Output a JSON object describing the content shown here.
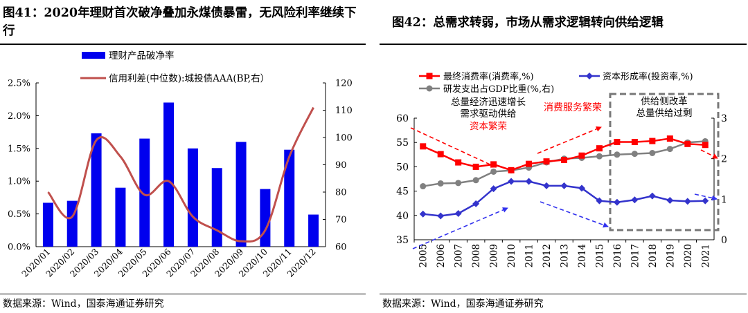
{
  "left": {
    "title_bold": "图41：2020",
    "title_rest": "年理财首次破净叠加永煤债暴雷，无风险利率继续下行",
    "source": "数据来源：Wind，国泰海通证券研究",
    "legend": {
      "bar": "理财产品破净率",
      "line": "信用利差(中位数):城投债AAA(BP,右）"
    },
    "colors": {
      "bar": "#0000ee",
      "line": "#c0504d"
    },
    "chart_data": {
      "type": "bar",
      "categories": [
        "2020/01",
        "2020/02",
        "2020/03",
        "2020/04",
        "2020/05",
        "2020/06",
        "2020/07",
        "2020/08",
        "2020/09",
        "2020/10",
        "2020/11",
        "2020/12"
      ],
      "series": [
        {
          "name": "理财产品破净率",
          "type": "bar",
          "axis": "left",
          "values": [
            0.67,
            0.7,
            1.73,
            0.9,
            1.65,
            2.2,
            1.5,
            1.2,
            1.6,
            0.88,
            1.48,
            0.49
          ]
        },
        {
          "name": "信用利差(中位数):城投债AAA(BP,右）",
          "type": "line",
          "axis": "right",
          "values": [
            80,
            71,
            99,
            93,
            79,
            84,
            71,
            66,
            62,
            66,
            93,
            111
          ]
        }
      ],
      "y_left": {
        "min": 0,
        "max": 2.5,
        "ticks": [
          "0.0%",
          "0.5%",
          "1.0%",
          "1.5%",
          "2.0%",
          "2.5%"
        ]
      },
      "y_right": {
        "min": 60,
        "max": 120,
        "ticks": [
          "60",
          "70",
          "80",
          "90",
          "100",
          "110",
          "120"
        ]
      }
    }
  },
  "right": {
    "title": "图42：总需求转弱，市场从需求逻辑转向供给逻辑",
    "source": "数据来源：Wind，国泰海通证券研究",
    "legend": {
      "s1": "最终消费率(消费率,%)",
      "s2": "资本形成率(投资率,%)",
      "s3": "研发支出占GDP比重(%,右)"
    },
    "annotations": {
      "left1": "总量经济迅速增长",
      "left2": "需求驱动供给",
      "left3": "资本繁荣",
      "mid": "消费服务繁荣",
      "box1": "供给侧改革",
      "box2": "总量供给过剩"
    },
    "colors": {
      "consumption": "#ff0000",
      "investment": "#3333cc",
      "rd": "#808080",
      "arrow_red": "#ff0000",
      "arrow_blue": "#3333ee"
    },
    "chart_data": {
      "type": "line",
      "x": [
        "2005",
        "2006",
        "2007",
        "2008",
        "2009",
        "2010",
        "2011",
        "2012",
        "2013",
        "2014",
        "2015",
        "2016",
        "2017",
        "2018",
        "2019",
        "2020",
        "2021"
      ],
      "series": [
        {
          "name": "最终消费率(消费率,%)",
          "axis": "left",
          "values": [
            54.2,
            52.6,
            50.9,
            50.0,
            50.5,
            49.3,
            50.6,
            51.1,
            51.4,
            52.3,
            53.8,
            55.1,
            55.1,
            55.3,
            55.8,
            54.7,
            54.5
          ]
        },
        {
          "name": "资本形成率(投资率,%)",
          "axis": "left",
          "values": [
            40.3,
            39.9,
            40.4,
            42.4,
            45.5,
            47.0,
            47.0,
            46.1,
            46.1,
            45.6,
            43.0,
            42.7,
            43.2,
            44.0,
            43.1,
            42.9,
            43.0
          ]
        },
        {
          "name": "研发支出占GDP比重(%,右)",
          "axis": "right",
          "values": [
            1.32,
            1.39,
            1.4,
            1.47,
            1.68,
            1.71,
            1.78,
            1.91,
            2.0,
            2.02,
            2.06,
            2.1,
            2.12,
            2.14,
            2.24,
            2.4,
            2.43
          ]
        }
      ],
      "y_left": {
        "min": 35,
        "max": 60,
        "ticks": [
          "35",
          "40",
          "45",
          "50",
          "55",
          "60"
        ]
      },
      "y_right": {
        "min": 0,
        "max": 3,
        "ticks": [
          "0",
          "1",
          "2",
          "3"
        ]
      }
    }
  }
}
